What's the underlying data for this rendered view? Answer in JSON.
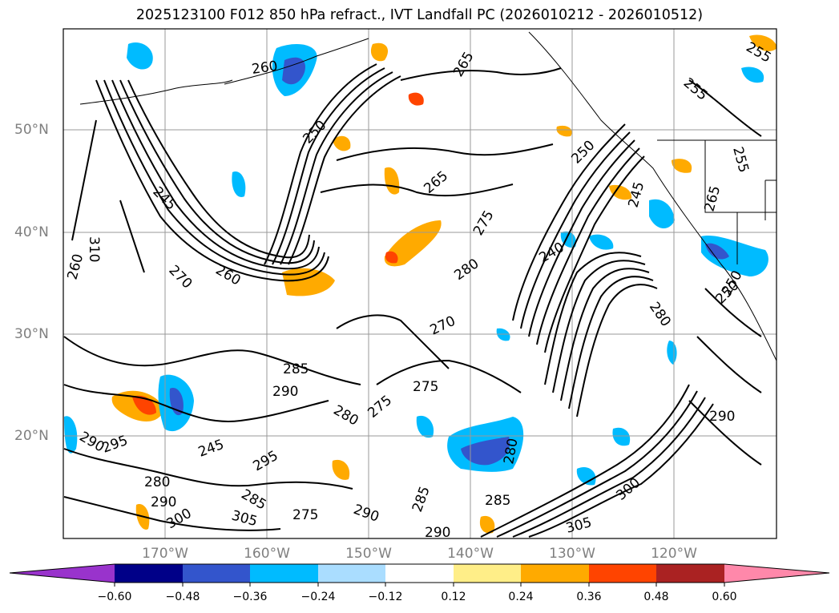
{
  "title": "2025123100 F012 850 hPa refract., IVT Landfall PC (2026010212 - 2026010512)",
  "latitude_labels": [
    "50°N",
    "40°N",
    "30°N",
    "20°N"
  ],
  "longitude_labels": [
    "170°W",
    "160°W",
    "150°W",
    "140°W",
    "130°W",
    "120°W"
  ],
  "colorbar": {
    "ticks": [
      "−0.60",
      "−0.48",
      "−0.36",
      "−0.24",
      "−0.12",
      "0.12",
      "0.24",
      "0.36",
      "0.48",
      "0.60"
    ],
    "colors": [
      "#9933cc",
      "#000088",
      "#3355cc",
      "#00bbff",
      "#aaddff",
      "#ffffff",
      "#ffee88",
      "#ffaa00",
      "#ff4400",
      "#aa2222",
      "#ff88aa"
    ]
  },
  "contour_labels": [
    "260",
    "265",
    "250",
    "265",
    "255",
    "245",
    "275",
    "280",
    "240",
    "250",
    "270",
    "260",
    "285",
    "290",
    "275",
    "270",
    "280",
    "275",
    "285",
    "290",
    "280",
    "290",
    "305",
    "300",
    "290",
    "285",
    "305",
    "300",
    "285",
    "275",
    "290",
    "245",
    "280",
    "250",
    "245",
    "290",
    "260",
    "255",
    "295",
    "255",
    "250",
    "280",
    "295",
    "310",
    "265"
  ],
  "map_features": [
    "coastline-north-america",
    "coastline-aleutians",
    "us-canada-border",
    "state-borders"
  ]
}
